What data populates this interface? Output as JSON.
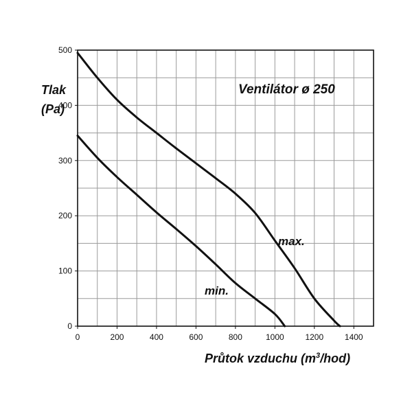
{
  "chart_data": {
    "type": "line",
    "title": "Ventilátor ø 250",
    "ylabel_line1": "Tlak",
    "ylabel_line2": "(Pa)",
    "xlabel_main": "Průtok vzduchu (m",
    "xlabel_sup": "3",
    "xlabel_tail": "/hod)",
    "xlim": [
      0,
      1500
    ],
    "ylim": [
      0,
      500
    ],
    "x_ticks": [
      0,
      200,
      400,
      600,
      800,
      1000,
      1200,
      1400
    ],
    "y_ticks": [
      0,
      100,
      200,
      300,
      400,
      500
    ],
    "x_grid_step": 100,
    "y_grid_step": 50,
    "grid": true,
    "colors": {
      "grid": "#9a9a9a",
      "line": "#111111",
      "frame": "#111111"
    },
    "series": [
      {
        "name": "max.",
        "x": [
          0,
          100,
          200,
          300,
          400,
          500,
          600,
          700,
          800,
          900,
          1000,
          1100,
          1200,
          1300,
          1330
        ],
        "y": [
          495,
          450,
          410,
          378,
          350,
          322,
          295,
          268,
          240,
          205,
          155,
          105,
          50,
          10,
          0
        ]
      },
      {
        "name": "min.",
        "x": [
          0,
          100,
          200,
          300,
          400,
          500,
          600,
          700,
          800,
          900,
          1000,
          1050
        ],
        "y": [
          345,
          305,
          270,
          238,
          206,
          176,
          145,
          112,
          78,
          50,
          22,
          0
        ]
      }
    ]
  }
}
